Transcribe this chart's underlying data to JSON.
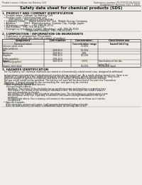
{
  "bg_color": "#f0ede8",
  "header_left": "Product name: Lithium Ion Battery Cell",
  "header_right1": "Substance number: R1250V301A-00010",
  "header_right2": "Established / Revision: Dec.7,2010",
  "main_title": "Safety data sheet for chemical products (SDS)",
  "s1_title": "1. PRODUCT AND COMPANY IDENTIFICATION",
  "s1_lines": [
    "  • Product name: Lithium Ion Battery Cell",
    "  • Product code: Cylindrical-type cell",
    "        (INF18650U, INF18650U, INF18650A)",
    "  • Company name:    Sanyo Electric Co., Ltd.  Mobile Energy Company",
    "  • Address:          2001  Kamitakamatsu, Sumoto City, Hyogo, Japan",
    "  • Telephone number:    +81-799-26-4111",
    "  • Fax number:  +81-799-26-4120",
    "  • Emergency telephone number (Weekday): +81-799-26-3562",
    "                              (Night and holiday): +81-799-26-4101"
  ],
  "s2_title": "2. COMPOSITION / INFORMATION ON INGREDIENTS",
  "s2_lines": [
    "  • Substance or preparation: Preparation",
    "  • Information about the chemical nature of product:"
  ],
  "tbl_hdr": [
    "Component",
    "Chemical name",
    "CAS number",
    "Concentration /\nConcentration range",
    "Classification and\nhazard labeling"
  ],
  "tbl_rows": [
    [
      "Lithium cobalt oxide\n(LiMnCoO4(Co))",
      "",
      "30-60%",
      ""
    ],
    [
      "Iron",
      "7439-89-6",
      "10-30%",
      ""
    ],
    [
      "Aluminum",
      "7429-90-5",
      "2-8%",
      ""
    ],
    [
      "Graphite\n(Flake graphite)\n(Artificial graphite)",
      "7782-42-5\n7782-42-5",
      "10-20%",
      ""
    ],
    [
      "Copper",
      "7440-50-8",
      "5-15%",
      "Sensitization of the skin\ngroup No.2"
    ],
    [
      "Organic electrolyte",
      "",
      "10-20%",
      "Flammable liquid"
    ]
  ],
  "s3_title": "3. HAZARDS IDENTIFICATION",
  "s3_paras": [
    "   For the battery cell, chemical materials are stored in a hermetically sealed metal case, designed to withstand\n   temperatures generated by electrochemical reaction during normal use. As a result, during normal use, there is no\n   physical danger of ignition or explosion and there is no danger of hazardous materials leakage.",
    "   However, if exposed to a fire, added mechanical shocks, decomposed, written electric wires etc may occur,\n   the gas inside would not be operated. The battery cell case will be breached of fire particles, hazardous\n   materials may be released.",
    "   Moreover, if heated strongly by the surrounding fire, soot gas may be emitted."
  ],
  "s3_important": "  • Most important hazard and effects:",
  "s3_human_title": "      Human health effects:",
  "s3_human_lines": [
    "         Inhalation: The release of the electrolyte has an anesthesia action and stimulates a respiratory tract.",
    "         Skin contact: The release of the electrolyte stimulates a skin. The electrolyte skin contact causes a",
    "         sore and stimulation on the skin.",
    "         Eye contact: The release of the electrolyte stimulates eyes. The electrolyte eye contact causes a sore",
    "         and stimulation on the eye. Especially, a substance that causes a strong inflammation of the eye is",
    "         contained.",
    "         Environmental effects: Since a battery cell remains in the environment, do not throw out it into the",
    "         environment."
  ],
  "s3_specific": "  • Specific hazards:",
  "s3_specific_lines": [
    "      If the electrolyte contacts with water, it will generate detrimental hydrogen fluoride.",
    "      Since the lead-antimony electrolyte is inflammable liquid, do not long close to fire."
  ]
}
